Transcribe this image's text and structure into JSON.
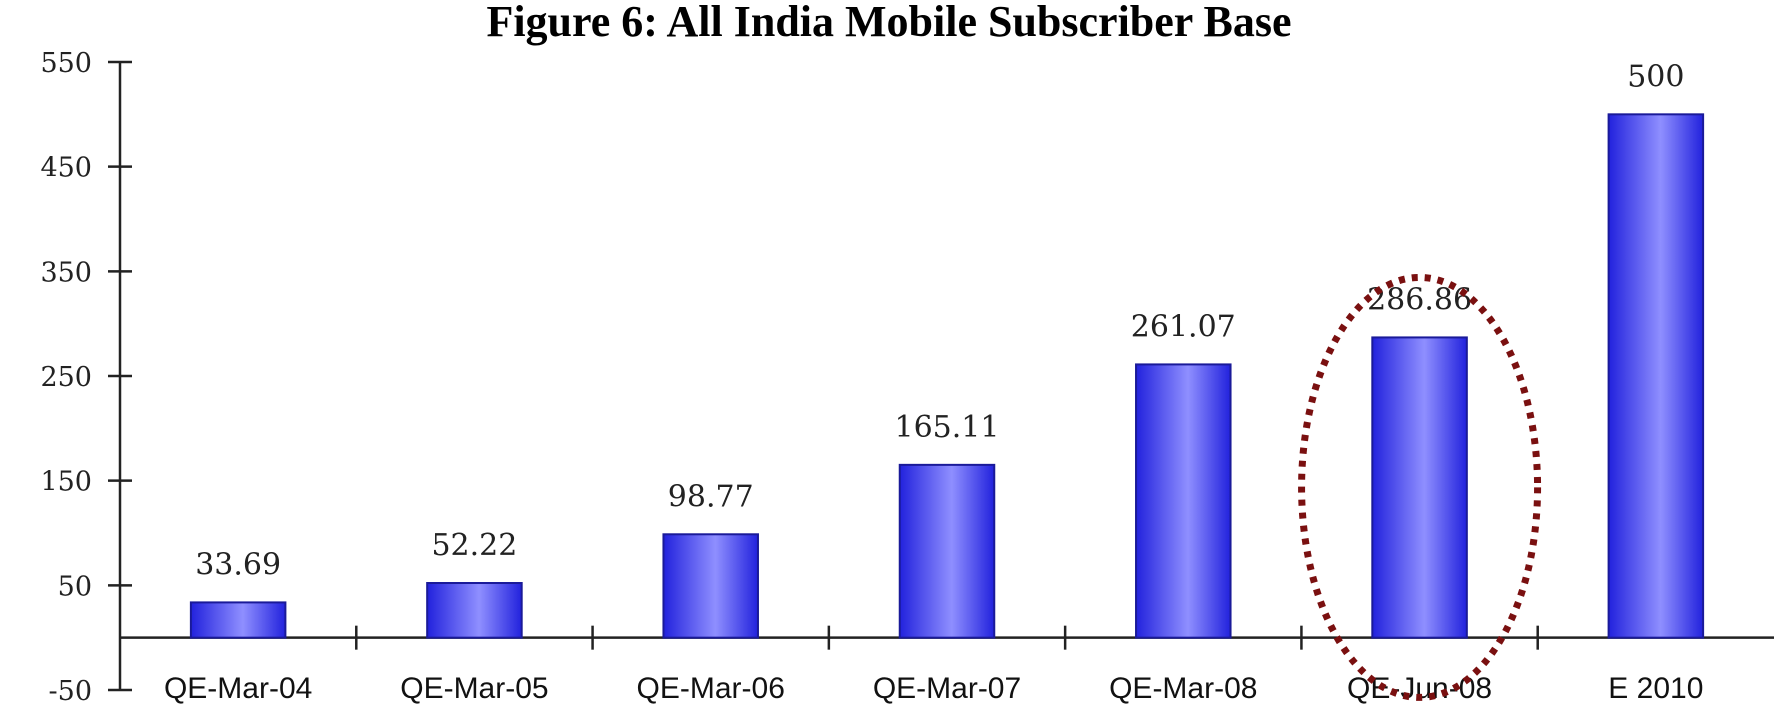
{
  "chart_data": {
    "type": "bar",
    "title": "Figure 6: All India Mobile Subscriber Base",
    "categories": [
      "QE-Mar-04",
      "QE-Mar-05",
      "QE-Mar-06",
      "QE-Mar-07",
      "QE-Mar-08",
      "QE-Jun-08",
      "E 2010"
    ],
    "values": [
      33.69,
      52.22,
      98.77,
      165.11,
      261.07,
      286.86,
      500
    ],
    "data_labels": [
      "33.69",
      "52.22",
      "98.77",
      "165.11",
      "261.07",
      "286.86",
      "500"
    ],
    "ylim": [
      -50,
      550
    ],
    "yticks": [
      550,
      450,
      350,
      250,
      150,
      50,
      -50
    ],
    "xlabel": "",
    "ylabel": "",
    "grid": false,
    "legend": "none",
    "highlighted_category": "QE-Jun-08",
    "colors": {
      "bar_edge": "#1a1a99",
      "bar_dark": "#2222dd",
      "bar_light": "#8f8fff",
      "highlight_ellipse": "#7a1010"
    }
  }
}
